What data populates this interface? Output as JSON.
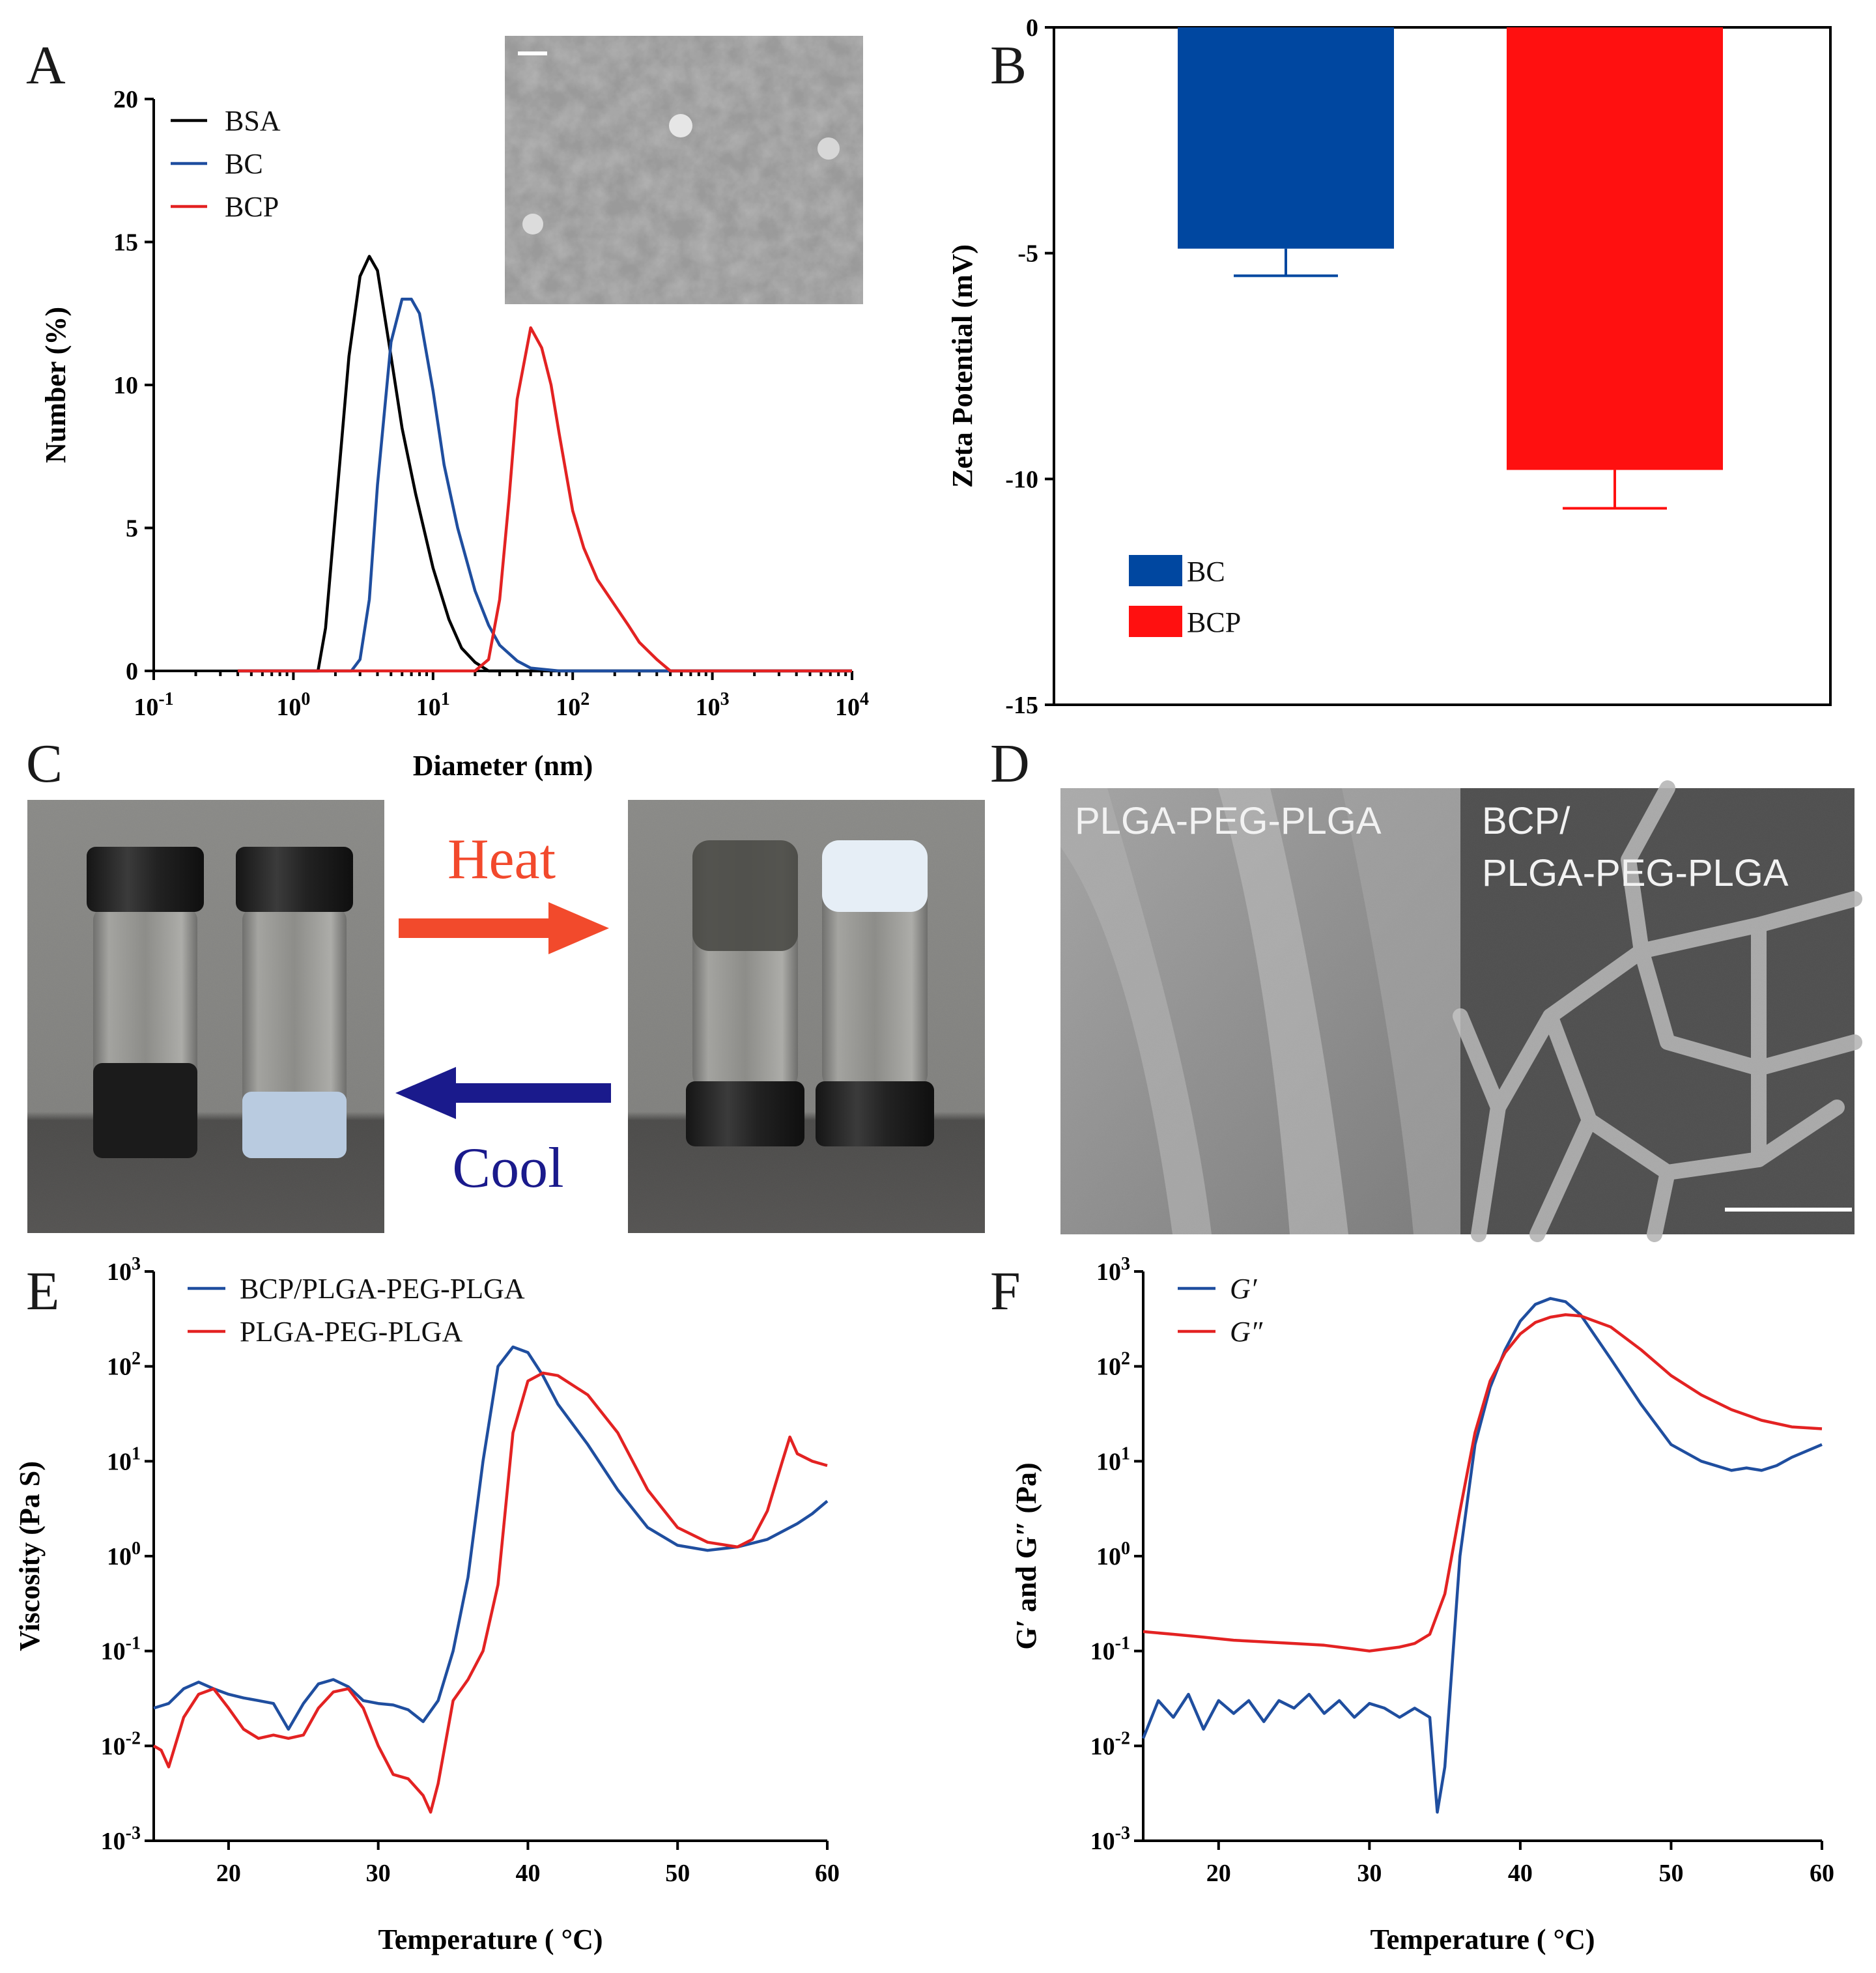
{
  "panels": {
    "A": "A",
    "B": "B",
    "C": "C",
    "D": "D",
    "E": "E",
    "F": "F"
  },
  "chart_data": [
    {
      "id": "A",
      "type": "line",
      "title": "",
      "xlabel": "Diameter (nm)",
      "ylabel": "Number (%)",
      "xscale": "log",
      "xlim": [
        0.1,
        10000
      ],
      "ylim": [
        0,
        20
      ],
      "xticks": [
        0.1,
        1,
        10,
        100,
        1000,
        10000
      ],
      "xtick_labels": [
        {
          "b": "10",
          "e": "-1"
        },
        {
          "b": "10",
          "e": "0"
        },
        {
          "b": "10",
          "e": "1"
        },
        {
          "b": "10",
          "e": "2"
        },
        {
          "b": "10",
          "e": "3"
        },
        {
          "b": "10",
          "e": "4"
        }
      ],
      "yticks": [
        0,
        5,
        10,
        15,
        20
      ],
      "ytick_labels": [
        "0",
        "5",
        "10",
        "15",
        "20"
      ],
      "legend_position": "top-left",
      "series": [
        {
          "name": "BSA",
          "color": "#000000",
          "x": [
            0.4,
            1.5,
            1.7,
            2.0,
            2.5,
            3.0,
            3.5,
            4.0,
            5.0,
            6.0,
            7.5,
            10,
            13,
            16,
            20,
            25,
            50,
            10000
          ],
          "y": [
            0,
            0,
            1.5,
            5.5,
            11,
            13.8,
            14.5,
            14,
            11,
            8.5,
            6.2,
            3.6,
            1.8,
            0.8,
            0.3,
            0,
            0,
            0
          ]
        },
        {
          "name": "BC",
          "color": "#1f4e9f",
          "x": [
            0.4,
            2.6,
            3.0,
            3.5,
            4.0,
            5.0,
            6.0,
            7.0,
            8.0,
            10,
            12,
            15,
            20,
            25,
            30,
            40,
            50,
            80,
            10000
          ],
          "y": [
            0,
            0,
            0.4,
            2.5,
            6.5,
            11.5,
            13,
            13,
            12.5,
            9.8,
            7.2,
            5,
            2.8,
            1.6,
            0.9,
            0.35,
            0.1,
            0,
            0
          ]
        },
        {
          "name": "BCP",
          "color": "#e32222",
          "x": [
            0.4,
            20,
            25,
            30,
            35,
            40,
            50,
            60,
            70,
            80,
            100,
            120,
            150,
            200,
            250,
            300,
            400,
            500,
            10000
          ],
          "y": [
            0,
            0,
            0.4,
            2.5,
            6,
            9.5,
            12,
            11.3,
            10,
            8.3,
            5.6,
            4.3,
            3.2,
            2.3,
            1.6,
            1.0,
            0.4,
            0,
            0
          ]
        }
      ]
    },
    {
      "id": "B",
      "type": "bar",
      "title": "",
      "xlabel": "",
      "ylabel": "Zeta Potential (mV)",
      "ylim": [
        -15,
        0
      ],
      "yticks": [
        0,
        -5,
        -10,
        -15
      ],
      "ytick_labels": [
        "0",
        "-5",
        "-10",
        "-15"
      ],
      "categories": [
        "BC",
        "BCP"
      ],
      "values": [
        -4.9,
        -9.8
      ],
      "errors": [
        0.6,
        0.85
      ],
      "colors": [
        "#0047a0",
        "#ff1010"
      ],
      "legend_position": "bottom-left"
    },
    {
      "id": "E",
      "type": "line",
      "title": "",
      "xlabel": "Temperature ( °C)",
      "ylabel": "Viscosity (Pa S)",
      "yscale": "log",
      "xlim": [
        15,
        60
      ],
      "ylim": [
        0.001,
        1000
      ],
      "xticks": [
        20,
        30,
        40,
        50,
        60
      ],
      "xtick_labels": [
        "20",
        "30",
        "40",
        "50",
        "60"
      ],
      "yticks": [
        0.001,
        0.01,
        0.1,
        1,
        10,
        100,
        1000
      ],
      "ytick_labels": [
        {
          "b": "10",
          "e": "-3"
        },
        {
          "b": "10",
          "e": "-2"
        },
        {
          "b": "10",
          "e": "-1"
        },
        {
          "b": "10",
          "e": "0"
        },
        {
          "b": "10",
          "e": "1"
        },
        {
          "b": "10",
          "e": "2"
        },
        {
          "b": "10",
          "e": "3"
        }
      ],
      "legend_position": "top-left",
      "series": [
        {
          "name": "BCP/PLGA-PEG-PLGA",
          "color": "#1f4e9f",
          "x": [
            15,
            16,
            17,
            18,
            19,
            20,
            21,
            22,
            23,
            24,
            25,
            26,
            27,
            28,
            29,
            30,
            31,
            32,
            33,
            34,
            35,
            36,
            37,
            38,
            39,
            40,
            41,
            42,
            44,
            46,
            48,
            50,
            52,
            53,
            54,
            56,
            58,
            59,
            60
          ],
          "y": [
            0.025,
            0.028,
            0.04,
            0.047,
            0.04,
            0.035,
            0.032,
            0.03,
            0.028,
            0.015,
            0.028,
            0.045,
            0.05,
            0.042,
            0.03,
            0.028,
            0.027,
            0.024,
            0.018,
            0.03,
            0.1,
            0.6,
            10,
            100,
            160,
            140,
            80,
            40,
            15,
            5,
            2,
            1.3,
            1.15,
            1.2,
            1.25,
            1.5,
            2.2,
            2.8,
            3.8
          ]
        },
        {
          "name": "PLGA-PEG-PLGA",
          "color": "#e32222",
          "x": [
            15,
            15.5,
            16,
            17,
            18,
            19,
            20,
            21,
            22,
            23,
            24,
            25,
            26,
            27,
            28,
            29,
            30,
            31,
            32,
            33,
            33.5,
            34,
            35,
            36,
            37,
            38,
            39,
            40,
            41,
            42,
            44,
            46,
            48,
            50,
            52,
            54,
            55,
            56,
            57,
            57.5,
            58,
            59,
            60
          ],
          "y": [
            0.01,
            0.009,
            0.006,
            0.02,
            0.035,
            0.04,
            0.025,
            0.015,
            0.012,
            0.013,
            0.012,
            0.013,
            0.025,
            0.037,
            0.04,
            0.025,
            0.01,
            0.005,
            0.0045,
            0.003,
            0.002,
            0.004,
            0.03,
            0.05,
            0.1,
            0.5,
            20,
            70,
            85,
            80,
            50,
            20,
            5,
            2,
            1.4,
            1.25,
            1.5,
            3,
            10,
            18,
            12,
            10,
            9
          ]
        }
      ]
    },
    {
      "id": "F",
      "type": "line",
      "title": "",
      "xlabel": "Temperature ( °C)",
      "ylabel": "G′ and G″ (Pa)",
      "yscale": "log",
      "xlim": [
        15,
        60
      ],
      "ylim": [
        0.001,
        1000
      ],
      "xticks": [
        20,
        30,
        40,
        50,
        60
      ],
      "xtick_labels": [
        "20",
        "30",
        "40",
        "50",
        "60"
      ],
      "yticks": [
        0.001,
        0.01,
        0.1,
        1,
        10,
        100,
        1000
      ],
      "ytick_labels": [
        {
          "b": "10",
          "e": "-3"
        },
        {
          "b": "10",
          "e": "-2"
        },
        {
          "b": "10",
          "e": "-1"
        },
        {
          "b": "10",
          "e": "0"
        },
        {
          "b": "10",
          "e": "1"
        },
        {
          "b": "10",
          "e": "2"
        },
        {
          "b": "10",
          "e": "3"
        }
      ],
      "legend_position": "top-left",
      "series": [
        {
          "name": "G′",
          "color": "#1f4e9f",
          "x": [
            15,
            16,
            17,
            18,
            19,
            20,
            21,
            22,
            23,
            24,
            25,
            26,
            27,
            28,
            29,
            30,
            31,
            32,
            33,
            34,
            34.5,
            35,
            36,
            37,
            38,
            39,
            40,
            41,
            42,
            43,
            44,
            46,
            48,
            50,
            52,
            54,
            55,
            56,
            57,
            58,
            60
          ],
          "y": [
            0.012,
            0.03,
            0.02,
            0.035,
            0.015,
            0.03,
            0.022,
            0.03,
            0.018,
            0.03,
            0.025,
            0.035,
            0.022,
            0.03,
            0.02,
            0.028,
            0.025,
            0.02,
            0.025,
            0.02,
            0.002,
            0.006,
            1,
            15,
            60,
            150,
            300,
            450,
            520,
            480,
            350,
            120,
            40,
            15,
            10,
            8,
            8.5,
            8,
            9,
            11,
            15
          ]
        },
        {
          "name": "G″",
          "color": "#e32222",
          "x": [
            15,
            17,
            19,
            21,
            23,
            25,
            27,
            29,
            30,
            31,
            32,
            33,
            34,
            35,
            36,
            37,
            38,
            39,
            40,
            41,
            42,
            43,
            44,
            46,
            48,
            50,
            52,
            54,
            56,
            58,
            60
          ],
          "y": [
            0.16,
            0.15,
            0.14,
            0.13,
            0.125,
            0.12,
            0.115,
            0.105,
            0.1,
            0.105,
            0.11,
            0.12,
            0.15,
            0.4,
            3,
            20,
            70,
            140,
            220,
            290,
            330,
            350,
            340,
            260,
            150,
            80,
            50,
            35,
            27,
            23,
            22
          ]
        }
      ]
    }
  ],
  "panel_C": {
    "heat": "Heat",
    "cool": "Cool"
  },
  "panel_D": {
    "left_label": "PLGA-PEG-PLGA",
    "right_label_1": "BCP/",
    "right_label_2": "PLGA-PEG-PLGA"
  }
}
